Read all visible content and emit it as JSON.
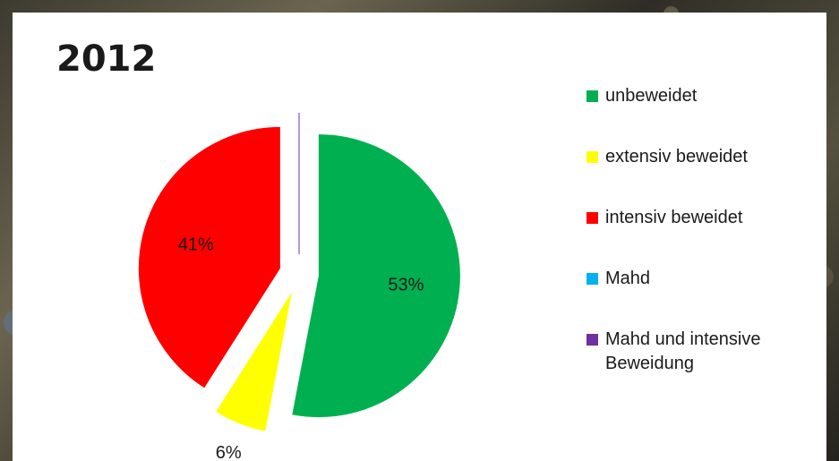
{
  "chart_data": {
    "type": "pie",
    "title": "2012",
    "categories": [
      "unbeweidet",
      "extensiv beweidet",
      "intensiv beweidet",
      "Mahd",
      "Mahd und intensive Beweidung"
    ],
    "values": [
      53,
      6,
      41,
      0,
      0
    ],
    "data_labels": [
      "53%",
      "6%",
      "41%",
      "",
      ""
    ],
    "colors": [
      "#00b050",
      "#ffff00",
      "#ff0000",
      "#00b0f0",
      "#7030a0"
    ],
    "legend_position": "right",
    "exploded": true
  }
}
